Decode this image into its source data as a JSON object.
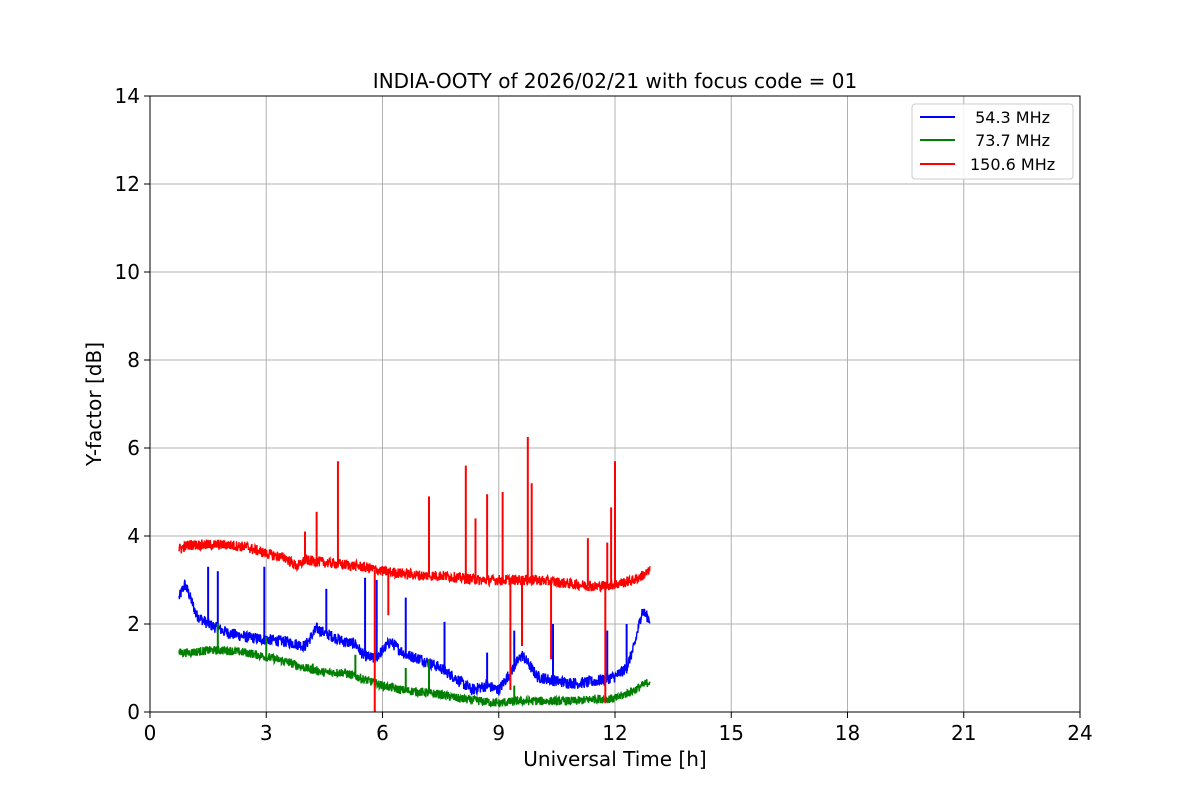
{
  "chart_data": {
    "type": "line",
    "title": "INDIA-OOTY of 2026/02/21 with focus code = 01",
    "xlabel": "Universal Time [h]",
    "ylabel": "Y-factor [dB]",
    "xlim": [
      0,
      24
    ],
    "ylim": [
      0,
      14
    ],
    "xticks": [
      0,
      3,
      6,
      9,
      12,
      15,
      18,
      21,
      24
    ],
    "yticks": [
      0,
      2,
      4,
      6,
      8,
      10,
      12,
      14
    ],
    "grid": true,
    "legend_position": "top-right",
    "series": [
      {
        "name": " 54.3 MHz",
        "color": "#0000ff",
        "noise": 0.13,
        "x": [
          0.75,
          0.9,
          1.0,
          1.2,
          1.5,
          2.0,
          2.5,
          3.0,
          3.5,
          4.0,
          4.3,
          4.5,
          5.0,
          5.3,
          5.5,
          5.8,
          6.2,
          6.6,
          7.0,
          7.5,
          8.0,
          8.3,
          8.7,
          9.0,
          9.3,
          9.6,
          10.0,
          10.5,
          11.0,
          11.5,
          12.0,
          12.3,
          12.5,
          12.7,
          12.9
        ],
        "y": [
          2.6,
          2.9,
          2.7,
          2.2,
          2.0,
          1.8,
          1.7,
          1.65,
          1.6,
          1.5,
          1.9,
          1.8,
          1.6,
          1.55,
          1.3,
          1.2,
          1.6,
          1.3,
          1.2,
          1.0,
          0.7,
          0.5,
          0.6,
          0.5,
          0.9,
          1.3,
          0.8,
          0.7,
          0.65,
          0.7,
          0.8,
          1.0,
          1.5,
          2.3,
          2.1
        ],
        "spikes": [
          [
            1.5,
            3.3
          ],
          [
            1.75,
            3.2
          ],
          [
            2.95,
            3.3
          ],
          [
            4.55,
            2.8
          ],
          [
            5.55,
            3.05
          ],
          [
            5.85,
            3.0
          ],
          [
            6.6,
            2.6
          ],
          [
            7.6,
            2.05
          ],
          [
            8.7,
            1.35
          ],
          [
            9.4,
            1.85
          ],
          [
            10.4,
            2.0
          ],
          [
            11.8,
            1.85
          ],
          [
            12.3,
            2.0
          ]
        ]
      },
      {
        "name": " 73.7 MHz",
        "color": "#008000",
        "noise": 0.1,
        "x": [
          0.75,
          1.0,
          1.5,
          2.0,
          2.5,
          3.0,
          3.5,
          4.0,
          4.5,
          5.0,
          5.5,
          6.0,
          6.5,
          7.0,
          7.5,
          8.0,
          8.5,
          9.0,
          9.5,
          10.0,
          10.5,
          11.0,
          11.5,
          12.0,
          12.5,
          12.9
        ],
        "y": [
          1.35,
          1.35,
          1.4,
          1.4,
          1.35,
          1.25,
          1.15,
          1.0,
          0.9,
          0.9,
          0.75,
          0.6,
          0.5,
          0.45,
          0.4,
          0.3,
          0.25,
          0.2,
          0.25,
          0.25,
          0.25,
          0.25,
          0.3,
          0.3,
          0.5,
          0.7
        ],
        "spikes": [
          [
            1.75,
            2.0
          ],
          [
            3.0,
            1.7
          ],
          [
            4.2,
            1.1
          ],
          [
            5.3,
            1.3
          ],
          [
            6.6,
            1.0
          ],
          [
            7.2,
            1.2
          ],
          [
            9.4,
            0.6
          ]
        ]
      },
      {
        "name": "150.6 MHz",
        "color": "#ff0000",
        "noise": 0.12,
        "x": [
          0.75,
          1.0,
          1.5,
          2.0,
          2.5,
          3.0,
          3.5,
          3.8,
          4.0,
          4.5,
          5.0,
          5.5,
          6.0,
          6.5,
          7.0,
          7.5,
          8.0,
          8.5,
          9.0,
          9.5,
          10.0,
          10.5,
          11.0,
          11.5,
          12.0,
          12.5,
          12.9
        ],
        "y": [
          3.7,
          3.8,
          3.8,
          3.8,
          3.75,
          3.6,
          3.5,
          3.3,
          3.45,
          3.4,
          3.35,
          3.3,
          3.2,
          3.15,
          3.1,
          3.1,
          3.05,
          3.0,
          3.0,
          3.0,
          3.0,
          2.95,
          2.9,
          2.85,
          2.9,
          3.0,
          3.2
        ],
        "spikes": [
          [
            4.0,
            4.1
          ],
          [
            4.3,
            4.55
          ],
          [
            4.85,
            5.7
          ],
          [
            7.2,
            4.9
          ],
          [
            8.15,
            5.6
          ],
          [
            8.4,
            4.4
          ],
          [
            8.7,
            4.95
          ],
          [
            9.1,
            5.0
          ],
          [
            9.75,
            6.25
          ],
          [
            9.85,
            5.2
          ],
          [
            11.3,
            3.95
          ],
          [
            11.8,
            3.85
          ],
          [
            11.9,
            4.65
          ],
          [
            12.0,
            5.7
          ]
        ],
        "dips": [
          [
            5.8,
            0.0
          ],
          [
            6.15,
            2.2
          ],
          [
            9.3,
            0.5
          ],
          [
            9.6,
            1.5
          ],
          [
            10.35,
            1.2
          ],
          [
            11.75,
            0.2
          ]
        ]
      }
    ]
  }
}
